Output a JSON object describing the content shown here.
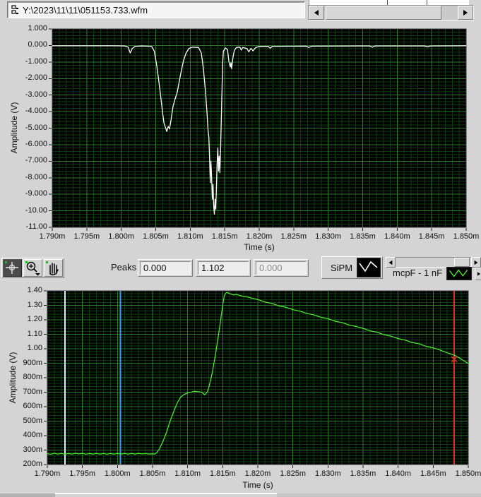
{
  "path_bar": {
    "value": "Y:\\2023\\11\\11\\051153.733.wfm"
  },
  "top_scrollbar": {
    "left_arrow": "left",
    "right_arrow": "right"
  },
  "toolbar": {
    "palette": [
      "crosshair-tool",
      "zoom-tool",
      "pan-tool"
    ],
    "peaks_label": "Peaks",
    "peak_values": [
      "0.000",
      "1.102",
      "0.000"
    ],
    "legend_top_label": "SiPM",
    "legend_bottom_label": "mcpF - 1 nF"
  },
  "colors": {
    "window_bg": "#d4d4d4",
    "plot_bg": "#000000",
    "grid_major": "#2c7b2c",
    "grid_minor": "#0e3c10",
    "trace_top": "#ffffff",
    "trace_bottom": "#4ce62e",
    "cursor_pale": "#d8eef8",
    "cursor_blue": "#39a2df",
    "cursor_red": "#e03020",
    "tick_color": "#1a1a1a"
  },
  "chart_data": [
    {
      "type": "line",
      "title": "",
      "xlabel": "Time (s)",
      "ylabel": "Amplitude (V)",
      "xlim": [
        1.79,
        1.85
      ],
      "ylim": [
        -11.0,
        1.0
      ],
      "grid": true,
      "legend_position": "toolbar",
      "x_minor": 0.001,
      "y_minor": 0.2,
      "x_ticks": {
        "values": [
          1.79,
          1.795,
          1.8,
          1.805,
          1.81,
          1.815,
          1.82,
          1.825,
          1.83,
          1.835,
          1.84,
          1.845,
          1.85
        ],
        "labels": [
          "1.790m",
          "1.795m",
          "1.800m",
          "1.805m",
          "1.810m",
          "1.815m",
          "1.820m",
          "1.825m",
          "1.830m",
          "1.835m",
          "1.840m",
          "1.845m",
          "1.850m"
        ]
      },
      "y_ticks": {
        "values": [
          1,
          0,
          -1,
          -2,
          -3,
          -4,
          -5,
          -6,
          -7,
          -8,
          -9,
          -10,
          -11
        ],
        "labels": [
          "1.000",
          "0.000",
          "-1.000",
          "-2.000",
          "-3.000",
          "-4.000",
          "-5.000",
          "-6.000",
          "-7.000",
          "-8.000",
          "-9.000",
          "-10.00",
          "-11.00"
        ]
      },
      "cursors": [],
      "series": [
        {
          "name": "SiPM",
          "color": "#ffffff",
          "points": [
            [
              1.79,
              -0.02
            ],
            [
              1.795,
              -0.02
            ],
            [
              1.799,
              -0.02
            ],
            [
              1.8005,
              -0.03
            ],
            [
              1.801,
              -0.1
            ],
            [
              1.8013,
              -0.45
            ],
            [
              1.8016,
              -0.18
            ],
            [
              1.802,
              -0.05
            ],
            [
              1.803,
              -0.03
            ],
            [
              1.8044,
              -0.05
            ],
            [
              1.8048,
              -0.35
            ],
            [
              1.8051,
              -1.1
            ],
            [
              1.8054,
              -2.0
            ],
            [
              1.8057,
              -3.0
            ],
            [
              1.806,
              -4.1
            ],
            [
              1.8062,
              -4.7
            ],
            [
              1.8064,
              -4.95
            ],
            [
              1.8066,
              -5.2
            ],
            [
              1.8068,
              -4.9
            ],
            [
              1.807,
              -5.05
            ],
            [
              1.8072,
              -4.55
            ],
            [
              1.8075,
              -3.7
            ],
            [
              1.8078,
              -3.25
            ],
            [
              1.8081,
              -2.85
            ],
            [
              1.8084,
              -2.2
            ],
            [
              1.8087,
              -1.55
            ],
            [
              1.809,
              -0.95
            ],
            [
              1.8094,
              -0.45
            ],
            [
              1.8098,
              -0.18
            ],
            [
              1.8103,
              -0.1
            ],
            [
              1.8112,
              -0.12
            ],
            [
              1.8116,
              -0.45
            ],
            [
              1.8119,
              -1.4
            ],
            [
              1.8122,
              -2.7
            ],
            [
              1.8124,
              -3.9
            ],
            [
              1.8126,
              -5.2
            ],
            [
              1.8127,
              -5.55
            ],
            [
              1.8128,
              -6.8
            ],
            [
              1.8129,
              -8.3
            ],
            [
              1.813,
              -7.0
            ],
            [
              1.8131,
              -7.95
            ],
            [
              1.8132,
              -9.3
            ],
            [
              1.8133,
              -8.4
            ],
            [
              1.8134,
              -9.7
            ],
            [
              1.8135,
              -10.2
            ],
            [
              1.8136,
              -9.3
            ],
            [
              1.8137,
              -9.9
            ],
            [
              1.8138,
              -8.6
            ],
            [
              1.8139,
              -7.1
            ],
            [
              1.814,
              -6.2
            ],
            [
              1.8141,
              -7.6
            ],
            [
              1.8142,
              -6.7
            ],
            [
              1.8143,
              -7.7
            ],
            [
              1.8144,
              -6.3
            ],
            [
              1.8145,
              -4.5
            ],
            [
              1.8146,
              -2.7
            ],
            [
              1.8147,
              -1.1
            ],
            [
              1.8148,
              -0.35
            ],
            [
              1.8151,
              -0.15
            ],
            [
              1.8154,
              -0.25
            ],
            [
              1.8156,
              -0.95
            ],
            [
              1.8158,
              -1.3
            ],
            [
              1.8159,
              -1.05
            ],
            [
              1.816,
              -1.4
            ],
            [
              1.8162,
              -0.7
            ],
            [
              1.8164,
              -0.3
            ],
            [
              1.8167,
              -0.12
            ],
            [
              1.8172,
              -0.1
            ],
            [
              1.8174,
              -0.28
            ],
            [
              1.8176,
              -0.12
            ],
            [
              1.8182,
              -0.18
            ],
            [
              1.8185,
              -0.38
            ],
            [
              1.8188,
              -0.18
            ],
            [
              1.8191,
              -0.32
            ],
            [
              1.8195,
              -0.12
            ],
            [
              1.82,
              -0.06
            ],
            [
              1.8213,
              -0.05
            ],
            [
              1.8216,
              -0.16
            ],
            [
              1.8219,
              -0.05
            ],
            [
              1.8268,
              -0.04
            ],
            [
              1.8272,
              -0.12
            ],
            [
              1.8276,
              -0.04
            ],
            [
              1.836,
              -0.03
            ],
            [
              1.8364,
              -0.1
            ],
            [
              1.8368,
              -0.03
            ],
            [
              1.844,
              -0.03
            ],
            [
              1.8444,
              -0.08
            ],
            [
              1.8448,
              -0.03
            ],
            [
              1.85,
              -0.02
            ]
          ]
        }
      ]
    },
    {
      "type": "line",
      "title": "",
      "xlabel": "Time (s)",
      "ylabel": "Amplitude (V)",
      "xlim": [
        1.79,
        1.85
      ],
      "ylim": [
        0.2,
        1.4
      ],
      "grid": true,
      "legend_position": "toolbar",
      "x_minor": 0.001,
      "y_minor": 0.02,
      "x_ticks": {
        "values": [
          1.79,
          1.795,
          1.8,
          1.805,
          1.81,
          1.815,
          1.82,
          1.825,
          1.83,
          1.835,
          1.84,
          1.845,
          1.85
        ],
        "labels": [
          "1.790m",
          "1.795m",
          "1.800m",
          "1.805m",
          "1.810m",
          "1.815m",
          "1.820m",
          "1.825m",
          "1.830m",
          "1.835m",
          "1.840m",
          "1.845m",
          "1.850m"
        ]
      },
      "y_ticks": {
        "values": [
          1.4,
          1.3,
          1.2,
          1.1,
          1.0,
          0.9,
          0.8,
          0.7,
          0.6,
          0.5,
          0.4,
          0.3,
          0.2
        ],
        "labels": [
          "1.40",
          "1.30",
          "1.20",
          "1.10",
          "1.00",
          "900m",
          "800m",
          "700m",
          "600m",
          "500m",
          "400m",
          "300m",
          "200m"
        ]
      },
      "cursors": [
        {
          "x": 1.7925,
          "color": "#d8eef8",
          "width": 2
        },
        {
          "x": 1.8004,
          "color": "#39a2df",
          "width": 2
        },
        {
          "x": 1.848,
          "color": "#e03020",
          "width": 2,
          "marker_y": 0.927
        }
      ],
      "series": [
        {
          "name": "mcpF - 1 nF",
          "color": "#4ce62e",
          "points": [
            [
              1.79,
              0.275
            ],
            [
              1.7905,
              0.271
            ],
            [
              1.791,
              0.278
            ],
            [
              1.7915,
              0.272
            ],
            [
              1.792,
              0.277
            ],
            [
              1.7925,
              0.271
            ],
            [
              1.793,
              0.276
            ],
            [
              1.7935,
              0.272
            ],
            [
              1.794,
              0.278
            ],
            [
              1.7945,
              0.273
            ],
            [
              1.795,
              0.277
            ],
            [
              1.7955,
              0.271
            ],
            [
              1.796,
              0.276
            ],
            [
              1.7965,
              0.272
            ],
            [
              1.797,
              0.277
            ],
            [
              1.7975,
              0.272
            ],
            [
              1.798,
              0.276
            ],
            [
              1.7985,
              0.271
            ],
            [
              1.799,
              0.276
            ],
            [
              1.7995,
              0.272
            ],
            [
              1.8,
              0.277
            ],
            [
              1.8005,
              0.272
            ],
            [
              1.801,
              0.277
            ],
            [
              1.8015,
              0.272
            ],
            [
              1.802,
              0.276
            ],
            [
              1.8025,
              0.272
            ],
            [
              1.803,
              0.277
            ],
            [
              1.8035,
              0.273
            ],
            [
              1.804,
              0.276
            ],
            [
              1.8045,
              0.272
            ],
            [
              1.805,
              0.274
            ],
            [
              1.8053,
              0.272
            ],
            [
              1.8056,
              0.282
            ],
            [
              1.806,
              0.31
            ],
            [
              1.8065,
              0.362
            ],
            [
              1.807,
              0.425
            ],
            [
              1.8075,
              0.5
            ],
            [
              1.808,
              0.565
            ],
            [
              1.8085,
              0.625
            ],
            [
              1.809,
              0.665
            ],
            [
              1.8095,
              0.685
            ],
            [
              1.81,
              0.695
            ],
            [
              1.8105,
              0.7
            ],
            [
              1.811,
              0.706
            ],
            [
              1.8115,
              0.703
            ],
            [
              1.812,
              0.7
            ],
            [
              1.8122,
              0.692
            ],
            [
              1.8124,
              0.682
            ],
            [
              1.8126,
              0.69
            ],
            [
              1.8128,
              0.702
            ],
            [
              1.813,
              0.73
            ],
            [
              1.8135,
              0.83
            ],
            [
              1.814,
              0.97
            ],
            [
              1.8145,
              1.13
            ],
            [
              1.815,
              1.3
            ],
            [
              1.8152,
              1.362
            ],
            [
              1.8154,
              1.383
            ],
            [
              1.8156,
              1.39
            ],
            [
              1.816,
              1.381
            ],
            [
              1.8165,
              1.372
            ],
            [
              1.817,
              1.374
            ],
            [
              1.8175,
              1.367
            ],
            [
              1.818,
              1.362
            ],
            [
              1.8185,
              1.358
            ],
            [
              1.819,
              1.351
            ],
            [
              1.82,
              1.34
            ],
            [
              1.821,
              1.323
            ],
            [
              1.822,
              1.313
            ],
            [
              1.823,
              1.296
            ],
            [
              1.824,
              1.287
            ],
            [
              1.825,
              1.27
            ],
            [
              1.826,
              1.26
            ],
            [
              1.827,
              1.244
            ],
            [
              1.828,
              1.234
            ],
            [
              1.829,
              1.217
            ],
            [
              1.83,
              1.208
            ],
            [
              1.831,
              1.19
            ],
            [
              1.832,
              1.181
            ],
            [
              1.833,
              1.164
            ],
            [
              1.834,
              1.154
            ],
            [
              1.835,
              1.141
            ],
            [
              1.836,
              1.124
            ],
            [
              1.837,
              1.114
            ],
            [
              1.838,
              1.097
            ],
            [
              1.839,
              1.087
            ],
            [
              1.84,
              1.07
            ],
            [
              1.841,
              1.06
            ],
            [
              1.842,
              1.043
            ],
            [
              1.843,
              1.034
            ],
            [
              1.844,
              1.016
            ],
            [
              1.845,
              1.007
            ],
            [
              1.846,
              0.99
            ],
            [
              1.847,
              0.972
            ],
            [
              1.848,
              0.956
            ],
            [
              1.8485,
              0.943
            ],
            [
              1.849,
              0.928
            ],
            [
              1.8495,
              0.913
            ],
            [
              1.85,
              0.898
            ]
          ]
        }
      ]
    }
  ]
}
